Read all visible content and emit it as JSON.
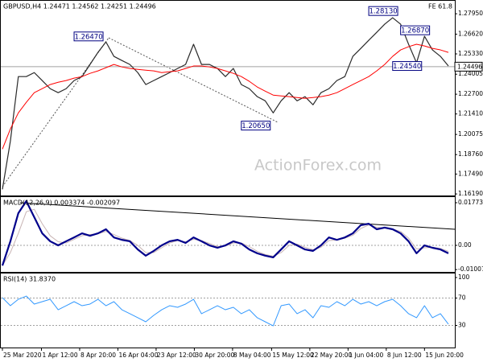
{
  "chart_data": [
    {
      "type": "line",
      "title": "GBPUSD,H4 1.24471 1.24562 1.24251 1.24496",
      "subtitle": "FE 61.8",
      "watermark": "ActionForex.com",
      "xlim": [
        0,
        56
      ],
      "xticks": [
        {
          "value": 0,
          "label": "25 Mar 2020"
        },
        {
          "value": 4.9,
          "label": "1 Apr 12:00"
        },
        {
          "value": 9.7,
          "label": "8 Apr 20:00"
        },
        {
          "value": 14.5,
          "label": "16 Apr 04:00"
        },
        {
          "value": 19.3,
          "label": "23 Apr 12:00"
        },
        {
          "value": 24.1,
          "label": "30 Apr 20:00"
        },
        {
          "value": 28.9,
          "label": "8 May 04:00"
        },
        {
          "value": 33.8,
          "label": "15 May 12:00"
        },
        {
          "value": 38.6,
          "label": "22 May 20:00"
        },
        {
          "value": 43.4,
          "label": "1 Jun 04:00"
        },
        {
          "value": 48.2,
          "label": "8 Jun 12:00"
        },
        {
          "value": 53,
          "label": "15 Jun 20:00"
        }
      ],
      "ylim": [
        1.1609,
        1.2869
      ],
      "yticks": [
        {
          "value": 1.2795,
          "label": "1.27950"
        },
        {
          "value": 1.2662,
          "label": "1.26620"
        },
        {
          "value": 1.2533,
          "label": "1.25330"
        },
        1.24005,
        {
          "value": 1.227,
          "label": "1.22700"
        },
        {
          "value": 1.2141,
          "label": "1.21410"
        },
        1.20075,
        {
          "value": 1.1876,
          "label": "1.18760"
        },
        {
          "value": 1.1749,
          "label": "1.17490"
        },
        {
          "value": 1.1619,
          "label": "1.16190"
        }
      ],
      "last": 1.24496,
      "last_color": "#a0a0a0",
      "series": [
        {
          "color": "#2a2a2a",
          "width": 1.2,
          "values": [
            1.1649,
            1.1964,
            1.2385,
            1.2385,
            1.2411,
            1.2359,
            1.2306,
            1.228,
            1.2306,
            1.2359,
            1.2385,
            1.2464,
            1.2543,
            1.2611,
            1.2517,
            1.249,
            1.2464,
            1.2411,
            1.2333,
            1.2359,
            1.2385,
            1.2411,
            1.2438,
            1.2464,
            1.2596,
            1.2464,
            1.2464,
            1.2438,
            1.2385,
            1.2438,
            1.2333,
            1.2306,
            1.2254,
            1.2227,
            1.2148,
            1.2227,
            1.228,
            1.2227,
            1.2254,
            1.2201,
            1.228,
            1.2306,
            1.2359,
            1.2385,
            1.2517,
            1.2569,
            1.2622,
            1.2674,
            1.2727,
            1.2769,
            1.2727,
            1.2596,
            1.2475,
            1.2648,
            1.2559,
            1.2517,
            1.2454
          ]
        },
        {
          "color": "#ff0000",
          "width": 1,
          "values": [
            1.1912,
            1.2043,
            1.2148,
            1.2217,
            1.228,
            1.2306,
            1.2333,
            1.2348,
            1.2359,
            1.2375,
            1.2385,
            1.2406,
            1.2422,
            1.2443,
            1.2464,
            1.2448,
            1.2438,
            1.2432,
            1.2427,
            1.2422,
            1.2411,
            1.2417,
            1.2422,
            1.2438,
            1.2454,
            1.2454,
            1.2448,
            1.2438,
            1.2422,
            1.2406,
            1.2385,
            1.2354,
            1.2317,
            1.229,
            1.2264,
            1.2259,
            1.2254,
            1.2248,
            1.2243,
            1.2248,
            1.2254,
            1.2264,
            1.228,
            1.2306,
            1.2333,
            1.2359,
            1.2385,
            1.2422,
            1.2464,
            1.2517,
            1.2559,
            1.258,
            1.2596,
            1.2585,
            1.2569,
            1.2559,
            1.2543
          ]
        }
      ],
      "annotations": [
        {
          "value": 1.2813,
          "label": "1.28130",
          "x": 46
        },
        {
          "value": 1.2647,
          "label": "1.26470",
          "x": 9
        },
        {
          "value": 1.2687,
          "label": "1.26870",
          "x": 50
        },
        {
          "value": 1.2454,
          "label": "1.24540",
          "x": 49
        },
        {
          "value": 1.2065,
          "label": "1.20650",
          "x": 30
        }
      ],
      "annotation_color": "#000080"
    },
    {
      "type": "line",
      "title": "MACD(12,26,9) 0.003374 -0.002097",
      "xlim": [
        0,
        56
      ],
      "ylim": [
        -0.01104,
        0.02008
      ],
      "yticks": [
        0.017734,
        {
          "value": 0,
          "label": "0.00"
        },
        -0.010075
      ],
      "levels": [
        0
      ],
      "series": [
        {
          "color": "#c8b4b4",
          "width": 1,
          "values": [
            -0.0084,
            -0.003,
            0.005,
            0.014,
            0.015,
            0.009,
            0.004,
            0.0015,
            0.001,
            0.0025,
            0.004,
            0.0045,
            0.0048,
            0.0058,
            0.0045,
            0.003,
            0.002,
            0.0,
            -0.003,
            -0.003,
            -0.001,
            0.001,
            0.002,
            0.0015,
            0.0025,
            0.002,
            0.0008,
            -0.0005,
            -0.0003,
            0.001,
            0.001,
            -0.0005,
            -0.0025,
            -0.0038,
            -0.0045,
            -0.003,
            0.0,
            0.0005,
            -0.0008,
            -0.0018,
            -0.0008,
            0.002,
            0.0022,
            0.003,
            0.0042,
            0.007,
            0.0085,
            0.0075,
            0.0072,
            0.0068,
            0.0058,
            0.003,
            -0.0015,
            -0.001,
            -0.0008,
            -0.0013,
            -0.0025
          ]
        },
        {
          "color": "#00008b",
          "width": 2.2,
          "values": [
            -0.0084,
            0.0017,
            0.0134,
            0.0184,
            0.0117,
            0.005,
            0.0017,
            0,
            0.0017,
            0.0033,
            0.005,
            0.004,
            0.005,
            0.0067,
            0.0033,
            0.0023,
            0.0017,
            -0.0017,
            -0.0043,
            -0.0023,
            0,
            0.0017,
            0.0023,
            0.001,
            0.0033,
            0.0017,
            0,
            -0.001,
            0,
            0.0017,
            0.0007,
            -0.0017,
            -0.0033,
            -0.0043,
            -0.005,
            -0.0017,
            0.0017,
            0,
            -0.0017,
            -0.0023,
            0,
            0.0033,
            0.0023,
            0.0033,
            0.005,
            0.0084,
            0.009,
            0.0067,
            0.0074,
            0.0067,
            0.005,
            0.0017,
            -0.0033,
            0,
            -0.001,
            -0.0017,
            -0.0033
          ]
        }
      ]
    },
    {
      "type": "line",
      "title": "RSI(14) 31.8370",
      "xlim": [
        0,
        56
      ],
      "ylim": [
        0,
        100
      ],
      "yticks": [
        100,
        70,
        30
      ],
      "levels": [
        70,
        30
      ],
      "series": [
        {
          "color": "#3399ff",
          "width": 1,
          "values": [
            70.6,
            58.8,
            68.2,
            72.9,
            61.2,
            64.7,
            68.2,
            52.9,
            58.8,
            64.7,
            58.8,
            61.2,
            68.2,
            58.8,
            64.7,
            52.9,
            47.1,
            41.2,
            35.3,
            44.7,
            52.9,
            58.8,
            56.5,
            61.2,
            68.2,
            47.1,
            52.9,
            58.8,
            52.9,
            56.5,
            47.1,
            52.9,
            41.2,
            35.3,
            29.4,
            58.8,
            61.2,
            47.1,
            52.9,
            41.2,
            58.8,
            56.5,
            64.7,
            58.8,
            68.2,
            61.2,
            64.7,
            58.8,
            64.7,
            68.2,
            58.8,
            47.1,
            41.2,
            58.8,
            41.2,
            47.1,
            31.8
          ]
        }
      ]
    }
  ]
}
